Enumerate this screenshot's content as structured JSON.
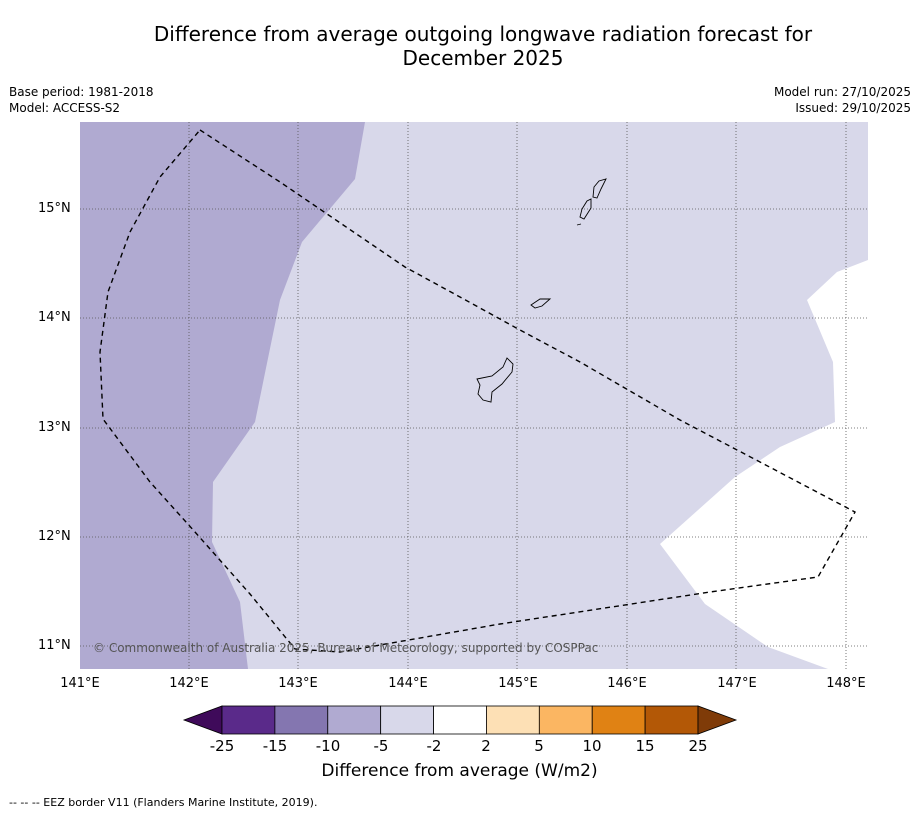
{
  "title": {
    "line1": "Difference from average outgoing longwave radiation forecast for",
    "line2": "December 2025"
  },
  "meta": {
    "base_period": "Base period: 1981-2018",
    "model": "Model: ACCESS-S2",
    "model_run": "Model run: 27/10/2025",
    "issued": "Issued: 29/10/2025"
  },
  "map": {
    "lon_min": 141.0,
    "lon_max": 148.2,
    "lat_min": 10.8,
    "lat_max": 15.8,
    "copyright": "© Commonwealth of Australia 2025, Bureau of Meteorology, supported by COSPPac",
    "lat_labels": [
      {
        "value": 15,
        "text": "15°N"
      },
      {
        "value": 14,
        "text": "14°N"
      },
      {
        "value": 13,
        "text": "13°N"
      },
      {
        "value": 12,
        "text": "12°N"
      },
      {
        "value": 11,
        "text": "11°N"
      }
    ],
    "lon_labels": [
      {
        "value": 141,
        "text": "141°E"
      },
      {
        "value": 142,
        "text": "142°E"
      },
      {
        "value": 143,
        "text": "143°E"
      },
      {
        "value": 144,
        "text": "144°E"
      },
      {
        "value": 145,
        "text": "145°E"
      },
      {
        "value": 146,
        "text": "146°E"
      },
      {
        "value": 147,
        "text": "147°E"
      },
      {
        "value": 148,
        "text": "148°E"
      }
    ],
    "anomaly_zones": [
      {
        "category": "-10 to -5",
        "color": "#b0aad1"
      },
      {
        "category": "-5 to -2",
        "color": "#d8d8ea"
      },
      {
        "category": "-2 to 2",
        "color": "#ffffff"
      }
    ]
  },
  "colorbar": {
    "label": "Difference from average (W/m2)",
    "ticks": [
      "-25",
      "-15",
      "-10",
      "-5",
      "-2",
      "2",
      "5",
      "10",
      "15",
      "25"
    ],
    "colors": [
      "#5a2a8a",
      "#8476b0",
      "#b0aad1",
      "#d8d8ea",
      "#ffffff",
      "#fde0b5",
      "#fbb662",
      "#e08214",
      "#b35806"
    ],
    "extend_low_color": "#3f0a5a",
    "extend_high_color": "#7f3b08"
  },
  "footnote": "--  --  -- EEZ border V11 (Flanders Marine Institute, 2019)."
}
